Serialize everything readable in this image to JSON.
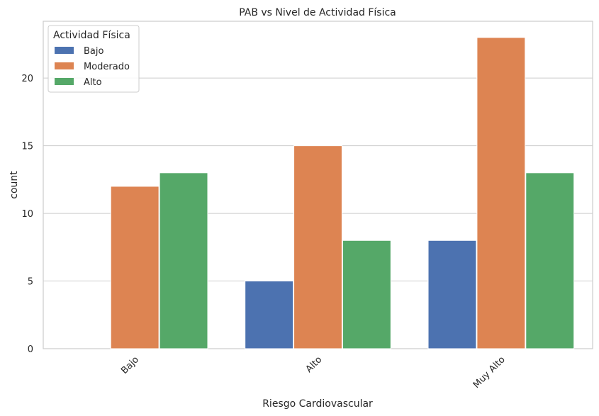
{
  "chart_data": {
    "type": "bar",
    "title": "PAB vs Nivel de Actividad Física",
    "xlabel": "Riesgo Cardiovascular",
    "ylabel": "count",
    "categories": [
      "Bajo",
      "Alto",
      "Muy Alto"
    ],
    "series": [
      {
        "name": "Bajo",
        "values": [
          0,
          5,
          8
        ],
        "color": "#4c72b0"
      },
      {
        "name": "Moderado",
        "values": [
          12,
          15,
          23
        ],
        "color": "#dd8452"
      },
      {
        "name": "Alto",
        "values": [
          13,
          8,
          13
        ],
        "color": "#55a868"
      }
    ],
    "ylim": [
      0,
      24.2
    ],
    "yticks": [
      0,
      5,
      10,
      15,
      20
    ],
    "legend": {
      "title": "Actividad Física",
      "placement": "top-left"
    },
    "grid": "horizontal",
    "xtick_rotation": "45°"
  }
}
